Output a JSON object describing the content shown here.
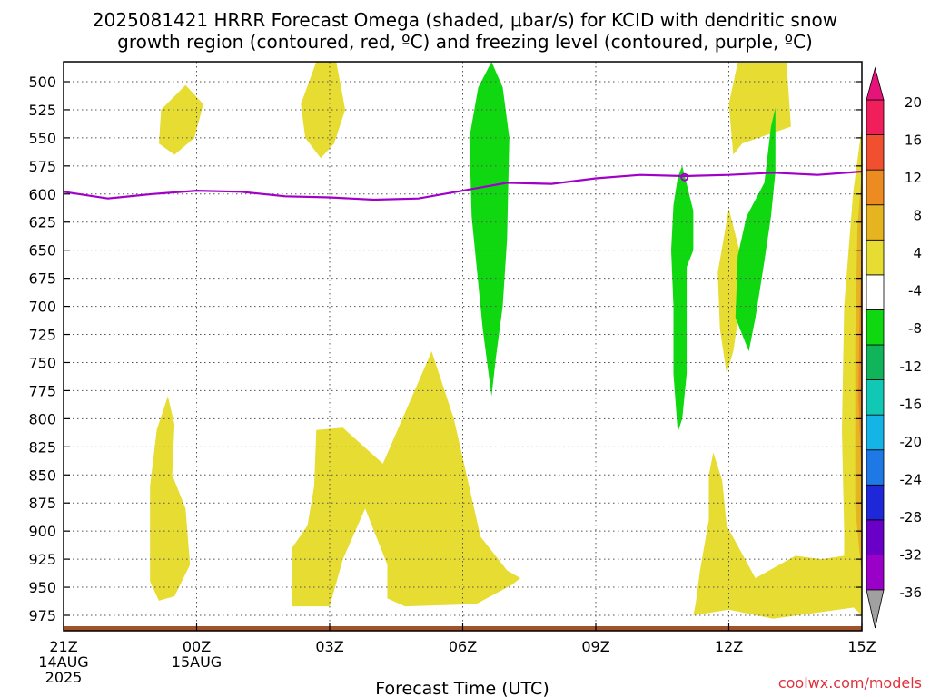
{
  "chart_data": {
    "type": "time-height cross section",
    "title_line1": "2025081421 HRRR Forecast Omega (shaded, μbar/s) for KCID with dendritic snow",
    "title_line2": "growth region (contoured, red, ºC) and freezing level (contoured, purple, ºC)",
    "xlabel": "Forecast Time (UTC)",
    "credit": "coolwx.com/models",
    "x_ticks": [
      {
        "h": 0,
        "lines": [
          "21Z",
          "14AUG",
          "2025"
        ]
      },
      {
        "h": 3,
        "lines": [
          "00Z",
          "15AUG"
        ]
      },
      {
        "h": 6,
        "lines": [
          "03Z"
        ]
      },
      {
        "h": 9,
        "lines": [
          "06Z"
        ]
      },
      {
        "h": 12,
        "lines": [
          "09Z"
        ]
      },
      {
        "h": 15,
        "lines": [
          "12Z"
        ]
      },
      {
        "h": 18,
        "lines": [
          "15Z"
        ]
      }
    ],
    "xlim": [
      0,
      18
    ],
    "ylim": [
      480,
      990
    ],
    "y_ticks": [
      500,
      525,
      550,
      575,
      600,
      625,
      650,
      675,
      700,
      725,
      750,
      775,
      800,
      825,
      850,
      875,
      900,
      925,
      950,
      975
    ],
    "grid": true,
    "colorbar": {
      "levels": [
        -36,
        -32,
        -28,
        -24,
        -20,
        -16,
        -12,
        -8,
        -4,
        4,
        8,
        12,
        16,
        20
      ],
      "labels": [
        "20",
        "16",
        "12",
        "8",
        "4",
        "-4",
        "-8",
        "-12",
        "-16",
        "-20",
        "-24",
        "-28",
        "-32",
        "-36"
      ],
      "colors_bottom_to_top": [
        "#a0a0a0",
        "#9b00c8",
        "#6a00c8",
        "#1e28d8",
        "#1e78e6",
        "#14b4e6",
        "#10c8b4",
        "#10b45a",
        "#10d810",
        "#ffffff",
        "#e6dc32",
        "#e6b420",
        "#ec8c20",
        "#f05030",
        "#f01e5a",
        "#e6147a"
      ]
    },
    "freezing_level": {
      "color": "#a000c8",
      "points": [
        [
          0,
          598
        ],
        [
          1,
          604
        ],
        [
          2,
          600
        ],
        [
          3,
          597
        ],
        [
          4,
          598
        ],
        [
          5,
          602
        ],
        [
          6,
          603
        ],
        [
          7,
          605
        ],
        [
          8,
          604
        ],
        [
          9,
          597
        ],
        [
          10,
          590
        ],
        [
          11,
          591
        ],
        [
          12,
          586
        ],
        [
          13,
          583
        ],
        [
          14,
          584
        ],
        [
          15,
          583
        ],
        [
          16,
          581
        ],
        [
          17,
          583
        ],
        [
          18,
          580
        ]
      ]
    },
    "shaded_regions": [
      {
        "value": 5,
        "color": "#e6dc32",
        "points": [
          [
            2.75,
            503
          ],
          [
            3.15,
            520
          ],
          [
            2.95,
            550
          ],
          [
            2.5,
            565
          ],
          [
            2.15,
            555
          ],
          [
            2.2,
            525
          ]
        ]
      },
      {
        "value": 5,
        "color": "#e6dc32",
        "points": [
          [
            5.7,
            480
          ],
          [
            6.15,
            480
          ],
          [
            6.35,
            525
          ],
          [
            6.1,
            555
          ],
          [
            5.8,
            568
          ],
          [
            5.45,
            550
          ],
          [
            5.35,
            520
          ]
        ]
      },
      {
        "value": 5,
        "color": "#e6dc32",
        "points": [
          [
            2.35,
            780
          ],
          [
            2.5,
            805
          ],
          [
            2.45,
            850
          ],
          [
            2.75,
            880
          ],
          [
            2.85,
            930
          ],
          [
            2.5,
            958
          ],
          [
            2.15,
            962
          ],
          [
            1.95,
            945
          ],
          [
            1.95,
            860
          ],
          [
            2.1,
            810
          ]
        ]
      },
      {
        "value": 5,
        "color": "#e6dc32",
        "points": [
          [
            5.7,
            810
          ],
          [
            6.3,
            808
          ],
          [
            7.2,
            840
          ],
          [
            8.3,
            740
          ],
          [
            8.8,
            800
          ],
          [
            9.2,
            870
          ],
          [
            9.4,
            905
          ],
          [
            10.0,
            935
          ],
          [
            10.3,
            942
          ],
          [
            10.1,
            948
          ],
          [
            9.3,
            965
          ],
          [
            7.7,
            967
          ],
          [
            7.3,
            960
          ],
          [
            7.3,
            930
          ],
          [
            6.8,
            880
          ],
          [
            6.3,
            925
          ],
          [
            6.0,
            967
          ],
          [
            5.15,
            967
          ],
          [
            5.15,
            915
          ],
          [
            5.5,
            895
          ],
          [
            5.65,
            860
          ]
        ]
      },
      {
        "value": 5,
        "color": "#e6dc32",
        "points": [
          [
            15.2,
            483
          ],
          [
            16.3,
            483
          ],
          [
            16.4,
            540
          ],
          [
            15.3,
            555
          ],
          [
            15.1,
            565
          ],
          [
            15.0,
            520
          ]
        ]
      },
      {
        "value": 5,
        "color": "#e6dc32",
        "points": [
          [
            15.0,
            613
          ],
          [
            15.3,
            660
          ],
          [
            15.25,
            700
          ],
          [
            15.1,
            740
          ],
          [
            14.95,
            760
          ],
          [
            14.8,
            720
          ],
          [
            14.75,
            670
          ]
        ]
      },
      {
        "value": 5,
        "color": "#e6dc32",
        "points": [
          [
            14.65,
            830
          ],
          [
            14.85,
            855
          ],
          [
            14.95,
            895
          ],
          [
            15.6,
            942
          ],
          [
            16.5,
            922
          ],
          [
            17.1,
            925
          ],
          [
            17.6,
            922
          ],
          [
            18.0,
            967
          ],
          [
            16.0,
            978
          ],
          [
            15.0,
            970
          ],
          [
            14.2,
            975
          ],
          [
            14.25,
            965
          ],
          [
            14.35,
            935
          ],
          [
            14.55,
            890
          ],
          [
            14.55,
            850
          ]
        ]
      },
      {
        "value": 5,
        "color": "#e6dc32",
        "points": [
          [
            18,
            540
          ],
          [
            18,
            975
          ],
          [
            17.6,
            960
          ],
          [
            17.6,
            900
          ],
          [
            17.55,
            810
          ],
          [
            17.6,
            700
          ],
          [
            17.8,
            600
          ]
        ]
      },
      {
        "value": 8,
        "color": "#e6b420",
        "points": [
          [
            18,
            580
          ],
          [
            18,
            940
          ],
          [
            17.85,
            880
          ],
          [
            17.85,
            730
          ],
          [
            17.9,
            630
          ]
        ]
      },
      {
        "value": 12,
        "color": "#ec8c20",
        "points": [
          [
            18,
            640
          ],
          [
            18,
            860
          ],
          [
            17.92,
            780
          ],
          [
            17.95,
            700
          ]
        ]
      },
      {
        "value": -6,
        "color": "#10d810",
        "points": [
          [
            9.65,
            480
          ],
          [
            9.9,
            505
          ],
          [
            10.05,
            550
          ],
          [
            10.0,
            640
          ],
          [
            9.9,
            700
          ],
          [
            9.75,
            745
          ],
          [
            9.65,
            780
          ],
          [
            9.45,
            720
          ],
          [
            9.2,
            620
          ],
          [
            9.15,
            550
          ],
          [
            9.35,
            505
          ]
        ]
      },
      {
        "value": -6,
        "color": "#10d810",
        "points": [
          [
            16.05,
            523
          ],
          [
            16.05,
            580
          ],
          [
            15.95,
            620
          ],
          [
            15.8,
            660
          ],
          [
            15.6,
            710
          ],
          [
            15.45,
            740
          ],
          [
            15.15,
            710
          ],
          [
            15.2,
            655
          ],
          [
            15.4,
            620
          ],
          [
            15.8,
            590
          ],
          [
            15.95,
            540
          ]
        ]
      },
      {
        "value": -6,
        "color": "#10d810",
        "points": [
          [
            13.95,
            575
          ],
          [
            14.2,
            615
          ],
          [
            14.2,
            650
          ],
          [
            14.05,
            665
          ],
          [
            14.05,
            760
          ],
          [
            13.95,
            800
          ],
          [
            13.85,
            812
          ],
          [
            13.75,
            760
          ],
          [
            13.75,
            700
          ],
          [
            13.7,
            650
          ],
          [
            13.75,
            610
          ],
          [
            13.85,
            585
          ]
        ]
      }
    ]
  }
}
